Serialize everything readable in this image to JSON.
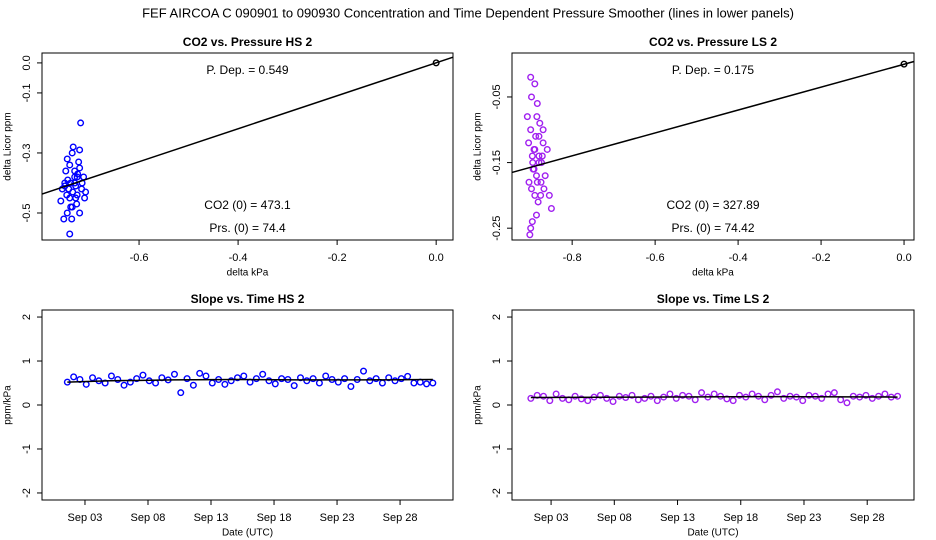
{
  "title": "FEF   AIRCOA C   090901 to 090930   Concentration and Time Dependent Pressure Smoother (lines in lower panels)",
  "chart_data": [
    {
      "type": "scatter",
      "title": "CO2 vs. Pressure HS 2",
      "xlabel": "delta kPa",
      "ylabel": "delta Licor ppm",
      "xlim": [
        -0.796,
        0.034
      ],
      "ylim": [
        -0.59,
        0.033
      ],
      "xticks": [
        -0.6,
        -0.4,
        -0.2,
        {
          "value": 0,
          "label": "0.0"
        }
      ],
      "yticks": [
        {
          "value": 0,
          "label": "0.0"
        },
        -0.1,
        -0.3,
        -0.5
      ],
      "annotations": [
        "P. Dep. =  0.549",
        "CO2 (0) =  473.1",
        "Prs. (0) =  74.4"
      ],
      "series": [
        {
          "color": "#0000ff",
          "style": "circle",
          "x": [
            -0.755,
            -0.75,
            -0.745,
            -0.74,
            -0.735,
            -0.73,
            -0.725,
            -0.72,
            -0.715,
            -0.71,
            -0.752,
            -0.748,
            -0.742,
            -0.738,
            -0.733,
            -0.728,
            -0.722,
            -0.718,
            -0.712,
            -0.708,
            -0.758,
            -0.746,
            -0.74,
            -0.736,
            -0.73,
            -0.726,
            -0.72,
            -0.716,
            -0.744,
            -0.734,
            -0.724,
            -0.72,
            -0.75,
            -0.74,
            -0.73,
            -0.738,
            -0.728,
            -0.745,
            -0.735,
            -0.725
          ],
          "values": [
            -0.42,
            -0.4,
            -0.5,
            -0.45,
            -0.3,
            -0.38,
            -0.44,
            -0.35,
            -0.4,
            -0.45,
            -0.52,
            -0.36,
            -0.42,
            -0.48,
            -0.28,
            -0.41,
            -0.33,
            -0.2,
            -0.38,
            -0.43,
            -0.46,
            -0.44,
            -0.34,
            -0.52,
            -0.4,
            -0.47,
            -0.29,
            -0.42,
            -0.39,
            -0.43,
            -0.37,
            -0.5,
            -0.41,
            -0.57,
            -0.36,
            -0.4,
            -0.45,
            -0.32,
            -0.48,
            -0.38
          ]
        },
        {
          "color": "#000000",
          "style": "line",
          "x": [
            -0.796,
            0.034
          ],
          "values": [
            -0.437,
            0.019
          ]
        },
        {
          "color": "#000000",
          "style": "circle",
          "x": [
            0
          ],
          "values": [
            0
          ]
        }
      ]
    },
    {
      "type": "scatter",
      "title": "CO2 vs. Pressure LS 2",
      "xlabel": "delta kPa",
      "ylabel": "delta Licor ppm",
      "xlim": [
        -0.945,
        0.024
      ],
      "ylim": [
        -0.268,
        0.017
      ],
      "xticks": [
        -0.8,
        -0.6,
        -0.4,
        -0.2,
        {
          "value": 0,
          "label": "0.0"
        }
      ],
      "yticks": [
        -0.05,
        -0.15,
        -0.25
      ],
      "annotations": [
        "P. Dep. =  0.175",
        "CO2 (0) =  327.89",
        "Prs. (0) =  74.42"
      ],
      "series": [
        {
          "color": "#a020f0",
          "style": "circle",
          "x": [
            -0.905,
            -0.9,
            -0.895,
            -0.89,
            -0.885,
            -0.88,
            -0.875,
            -0.87,
            -0.865,
            -0.86,
            -0.855,
            -0.85,
            -0.902,
            -0.898,
            -0.892,
            -0.888,
            -0.882,
            -0.878,
            -0.872,
            -0.868,
            -0.904,
            -0.896,
            -0.89,
            -0.884,
            -0.88,
            -0.876,
            -0.87,
            -0.9,
            -0.894,
            -0.886,
            -0.908,
            -0.898,
            -0.892,
            -0.886,
            -0.88,
            -0.874,
            -0.9,
            -0.89,
            -0.884,
            -0.896
          ],
          "values": [
            -0.12,
            -0.02,
            -0.15,
            -0.2,
            -0.08,
            -0.14,
            -0.18,
            -0.1,
            -0.17,
            -0.13,
            -0.2,
            -0.22,
            -0.26,
            -0.05,
            -0.16,
            -0.11,
            -0.21,
            -0.09,
            -0.14,
            -0.19,
            -0.18,
            -0.24,
            -0.13,
            -0.06,
            -0.15,
            -0.2,
            -0.12,
            -0.1,
            -0.16,
            -0.23,
            -0.08,
            -0.19,
            -0.13,
            -0.17,
            -0.11,
            -0.15,
            -0.25,
            -0.03,
            -0.18,
            -0.14
          ]
        },
        {
          "color": "#000000",
          "style": "line",
          "x": [
            -0.945,
            0.024
          ],
          "values": [
            -0.165,
            0.004
          ]
        },
        {
          "color": "#000000",
          "style": "circle",
          "x": [
            0
          ],
          "values": [
            0
          ]
        }
      ]
    },
    {
      "type": "scatter",
      "title": "Slope vs. Time HS 2",
      "xlabel": "Date (UTC)",
      "ylabel": "ppm/kPa",
      "xlim": [
        -0.41,
        32.2
      ],
      "ylim": [
        -2.16,
        2.16
      ],
      "xticks": [
        {
          "value": 3,
          "label": "Sep 03"
        },
        {
          "value": 8,
          "label": "Sep 08"
        },
        {
          "value": 13,
          "label": "Sep 13"
        },
        {
          "value": 18,
          "label": "Sep 18"
        },
        {
          "value": 23,
          "label": "Sep 23"
        },
        {
          "value": 28,
          "label": "Sep 28"
        }
      ],
      "yticks": [
        -2,
        -1,
        0,
        1,
        2
      ],
      "series": [
        {
          "color": "#0000ff",
          "style": "circle",
          "x": [
            1.6,
            2.1,
            2.6,
            3.1,
            3.6,
            4.1,
            4.6,
            5.1,
            5.6,
            6.1,
            6.6,
            7.1,
            7.6,
            8.1,
            8.6,
            9.1,
            9.6,
            10.1,
            10.6,
            11.1,
            11.6,
            12.1,
            12.6,
            13.1,
            13.6,
            14.1,
            14.6,
            15.1,
            15.6,
            16.1,
            16.6,
            17.1,
            17.6,
            18.1,
            18.6,
            19.1,
            19.6,
            20.1,
            20.6,
            21.1,
            21.6,
            22.1,
            22.6,
            23.1,
            23.6,
            24.1,
            24.6,
            25.1,
            25.6,
            26.1,
            26.6,
            27.1,
            27.6,
            28.1,
            28.6,
            29.1,
            29.6,
            30.1,
            30.6
          ],
          "values": [
            0.52,
            0.64,
            0.58,
            0.47,
            0.62,
            0.55,
            0.5,
            0.66,
            0.58,
            0.45,
            0.52,
            0.6,
            0.68,
            0.55,
            0.5,
            0.62,
            0.57,
            0.7,
            0.28,
            0.6,
            0.45,
            0.72,
            0.66,
            0.5,
            0.58,
            0.47,
            0.55,
            0.62,
            0.66,
            0.52,
            0.6,
            0.7,
            0.55,
            0.48,
            0.6,
            0.58,
            0.44,
            0.62,
            0.55,
            0.6,
            0.5,
            0.66,
            0.58,
            0.52,
            0.6,
            0.42,
            0.58,
            0.77,
            0.55,
            0.6,
            0.5,
            0.62,
            0.55,
            0.6,
            0.65,
            0.5,
            0.52,
            0.48,
            0.5
          ]
        },
        {
          "color": "#000000",
          "style": "line",
          "x": [
            1.6,
            5,
            10,
            15,
            20,
            25,
            30.6
          ],
          "values": [
            0.52,
            0.55,
            0.57,
            0.58,
            0.57,
            0.57,
            0.58
          ]
        }
      ]
    },
    {
      "type": "scatter",
      "title": "Slope vs. Time LS 2",
      "xlabel": "Date (UTC)",
      "ylabel": "ppm/kPa",
      "xlim": [
        -0.09,
        31.7
      ],
      "ylim": [
        -2.16,
        2.16
      ],
      "xticks": [
        {
          "value": 3,
          "label": "Sep 03"
        },
        {
          "value": 8,
          "label": "Sep 08"
        },
        {
          "value": 13,
          "label": "Sep 13"
        },
        {
          "value": 18,
          "label": "Sep 18"
        },
        {
          "value": 23,
          "label": "Sep 23"
        },
        {
          "value": 28,
          "label": "Sep 28"
        }
      ],
      "yticks": [
        -2,
        -1,
        0,
        1,
        2
      ],
      "series": [
        {
          "color": "#a020f0",
          "style": "circle",
          "x": [
            1.4,
            1.9,
            2.4,
            2.9,
            3.4,
            3.9,
            4.4,
            4.9,
            5.4,
            5.9,
            6.4,
            6.9,
            7.4,
            7.9,
            8.4,
            8.9,
            9.4,
            9.9,
            10.4,
            10.9,
            11.4,
            11.9,
            12.4,
            12.9,
            13.4,
            13.9,
            14.4,
            14.9,
            15.4,
            15.9,
            16.4,
            16.9,
            17.4,
            17.9,
            18.4,
            18.9,
            19.4,
            19.9,
            20.4,
            20.9,
            21.4,
            21.9,
            22.4,
            22.9,
            23.4,
            23.9,
            24.4,
            24.9,
            25.4,
            25.9,
            26.4,
            26.9,
            27.4,
            27.9,
            28.4,
            28.9,
            29.4,
            29.9,
            30.4
          ],
          "values": [
            0.15,
            0.22,
            0.2,
            0.1,
            0.25,
            0.15,
            0.12,
            0.2,
            0.14,
            0.1,
            0.18,
            0.22,
            0.15,
            0.08,
            0.2,
            0.17,
            0.22,
            0.12,
            0.15,
            0.2,
            0.1,
            0.18,
            0.25,
            0.15,
            0.22,
            0.2,
            0.12,
            0.28,
            0.18,
            0.25,
            0.2,
            0.14,
            0.1,
            0.22,
            0.18,
            0.25,
            0.2,
            0.12,
            0.22,
            0.3,
            0.15,
            0.2,
            0.18,
            0.1,
            0.22,
            0.2,
            0.15,
            0.25,
            0.28,
            0.12,
            0.05,
            0.2,
            0.18,
            0.22,
            0.15,
            0.2,
            0.25,
            0.18,
            0.2
          ]
        },
        {
          "color": "#000000",
          "style": "line",
          "x": [
            1.4,
            10,
            20,
            30.4
          ],
          "values": [
            0.17,
            0.18,
            0.19,
            0.18
          ]
        }
      ]
    }
  ]
}
